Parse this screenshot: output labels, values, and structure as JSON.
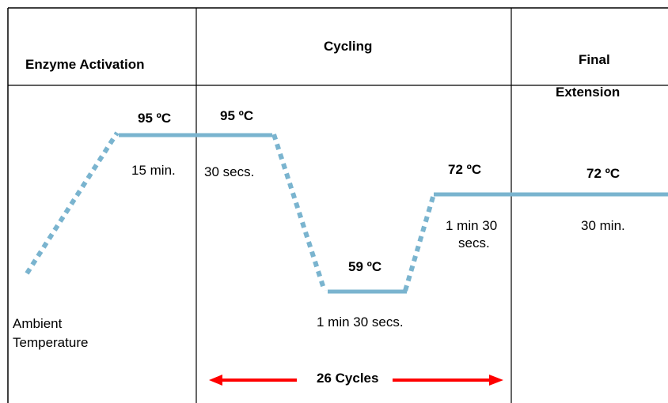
{
  "headers": {
    "activation": "Enzyme Activation",
    "cycling": "Cycling",
    "final_line1": "Final",
    "final_line2": "Extension"
  },
  "steps": {
    "activation_temp": "95 ºC",
    "activation_time": "15 min.",
    "denature_temp": "95 ºC",
    "denature_time": "30 secs.",
    "anneal_temp": "59 ºC",
    "anneal_time": "1 min 30 secs.",
    "extend_temp": "72 ºC",
    "extend_time_line1": "1 min 30",
    "extend_time_line2": "secs.",
    "final_temp": "72 ºC",
    "final_time": "30 min."
  },
  "ambient": {
    "line1": "Ambient",
    "line2": "Temperature"
  },
  "cycles_label": "26 Cycles",
  "colors": {
    "profile_line": "#7ab4cf",
    "arrow": "#ff0000",
    "border": "#000000"
  }
}
